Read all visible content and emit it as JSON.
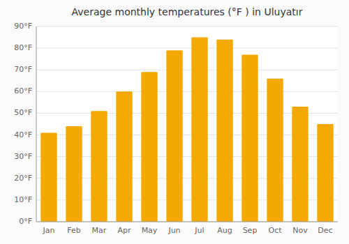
{
  "chart_data": {
    "type": "bar",
    "title": "Average monthly temperatures (°F ) in Uluyatır",
    "categories": [
      "Jan",
      "Feb",
      "Mar",
      "Apr",
      "May",
      "Jun",
      "Jul",
      "Aug",
      "Sep",
      "Oct",
      "Nov",
      "Dec"
    ],
    "values": [
      41,
      44,
      51,
      60,
      69,
      79,
      85,
      84,
      77,
      66,
      53,
      45
    ],
    "color": "#F5A800",
    "ylim": [
      0,
      90
    ],
    "yticks": [
      {
        "value": 0,
        "label": "0°F"
      },
      {
        "value": 10,
        "label": "10°F"
      },
      {
        "value": 20,
        "label": "20°F"
      },
      {
        "value": 30,
        "label": "30°F"
      },
      {
        "value": 40,
        "label": "40°F"
      },
      {
        "value": 50,
        "label": "50°F"
      },
      {
        "value": 60,
        "label": "60°F"
      },
      {
        "value": 70,
        "label": "70°F"
      },
      {
        "value": 80,
        "label": "80°F"
      },
      {
        "value": 90,
        "label": "90°F"
      }
    ],
    "grid": true
  }
}
